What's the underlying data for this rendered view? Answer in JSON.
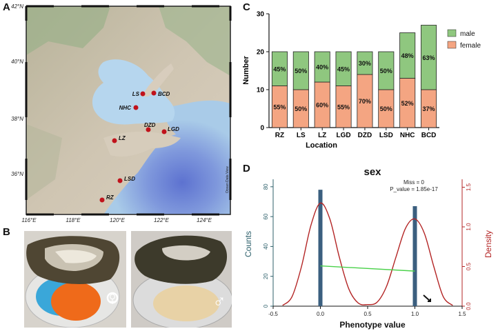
{
  "panels": {
    "a": "A",
    "b": "B",
    "c": "C",
    "d": "D"
  },
  "map": {
    "lat_labels": [
      "42°N",
      "40°N",
      "38°N",
      "36°N"
    ],
    "lon_labels": [
      "116°E",
      "118°E",
      "120°E",
      "122°E",
      "124°E"
    ],
    "credit": "Ocean Data View",
    "sites": [
      {
        "name": "LS"
      },
      {
        "name": "BCD"
      },
      {
        "name": "NHC"
      },
      {
        "name": "DZD"
      },
      {
        "name": "LGD"
      },
      {
        "name": "LZ"
      },
      {
        "name": "LSD"
      },
      {
        "name": "RZ"
      }
    ],
    "colors": {
      "land": "#c9bfae",
      "sea": "#a7c9e8",
      "deep_sea": "#6f86d6",
      "site": "#c0121b"
    }
  },
  "photos": {
    "female_symbol": "♀",
    "male_symbol": "♂",
    "roe_colors": {
      "female": "#ef6a1a",
      "male": "#e8d2a6"
    }
  },
  "chart_data": [
    {
      "type": "bar",
      "xlabel": "Location",
      "ylabel": "Number",
      "ylim": [
        0,
        30
      ],
      "yticks": [
        0,
        10,
        20,
        30
      ],
      "categories": [
        "RZ",
        "LS",
        "LZ",
        "LGD",
        "DZD",
        "LSD",
        "NHC",
        "BCD"
      ],
      "series": [
        {
          "name": "female",
          "color": "#f4a582",
          "values": [
            11,
            10,
            12,
            11,
            14,
            10,
            13,
            10
          ],
          "labels": [
            "55%",
            "50%",
            "60%",
            "55%",
            "70%",
            "50%",
            "52%",
            "37%"
          ]
        },
        {
          "name": "male",
          "color": "#8fc77f",
          "values": [
            9,
            10,
            8,
            9,
            6,
            10,
            12,
            17
          ],
          "labels": [
            "45%",
            "50%",
            "40%",
            "45%",
            "30%",
            "50%",
            "48%",
            "63%"
          ]
        }
      ],
      "legend_position": "top-right"
    },
    {
      "type": "bar",
      "title": "sex",
      "xlabel": "Phenotype value",
      "ylabel": "Counts",
      "y2label": "Density",
      "xlim": [
        -0.5,
        1.5
      ],
      "xticks": [
        -0.5,
        0.0,
        0.5,
        1.0,
        1.5
      ],
      "ylim": [
        0,
        85
      ],
      "yticks": [
        0,
        20,
        40,
        60,
        80
      ],
      "y2lim": [
        0,
        1.6
      ],
      "y2ticks": [
        0.0,
        0.5,
        1.0,
        1.5
      ],
      "bars": [
        {
          "x": 0,
          "value": 78
        },
        {
          "x": 1,
          "value": 67
        }
      ],
      "density_x": [
        -0.4,
        -0.3,
        -0.2,
        -0.1,
        0.0,
        0.1,
        0.2,
        0.3,
        0.4,
        0.5,
        0.6,
        0.7,
        0.8,
        0.9,
        1.0,
        1.1,
        1.2,
        1.3,
        1.4
      ],
      "density_y": [
        0.01,
        0.12,
        0.5,
        1.02,
        1.3,
        1.1,
        0.62,
        0.22,
        0.04,
        0.02,
        0.05,
        0.25,
        0.62,
        0.98,
        1.1,
        0.92,
        0.5,
        0.12,
        0.01
      ],
      "fit_line": {
        "x": [
          0.0,
          1.0
        ],
        "y": [
          27,
          23.5
        ]
      },
      "annotations": {
        "miss": "Miss = 0",
        "pvalue": "P_value = 1.85e-17"
      },
      "colors": {
        "bars": "#3b5f7f",
        "density": "#b32424",
        "fit": "#49d149",
        "left_axis": "#2c5f6a"
      }
    }
  ]
}
